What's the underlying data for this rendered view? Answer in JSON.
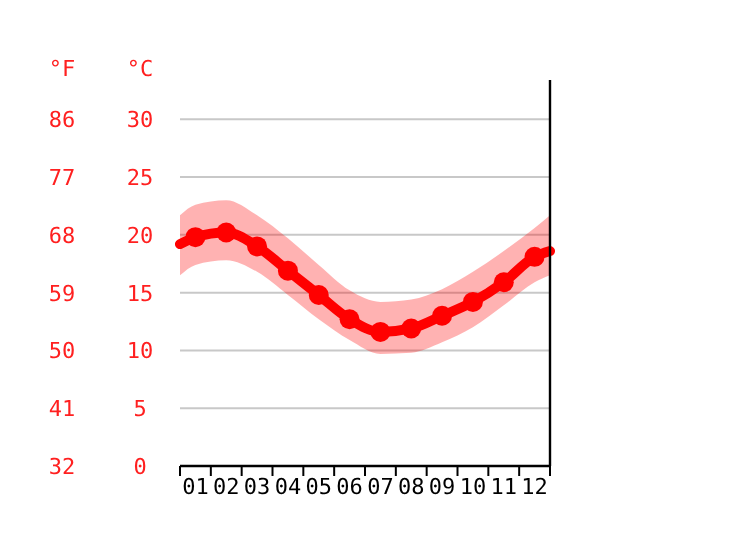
{
  "chart_data": {
    "type": "line",
    "ylabel": "°C",
    "y2label": "°F",
    "x": [
      0,
      0.5,
      1.5,
      2.5,
      3.5,
      4.5,
      5.5,
      6.5,
      7.5,
      8.5,
      9.5,
      10.5,
      11.5,
      12
    ],
    "xlim": [
      0,
      12
    ],
    "xticks": [
      {
        "value": 0,
        "label": null
      },
      {
        "value": 0.5,
        "label": "01"
      },
      {
        "value": 1,
        "label": null
      },
      {
        "value": 1.5,
        "label": "02"
      },
      {
        "value": 2,
        "label": null
      },
      {
        "value": 2.5,
        "label": "03"
      },
      {
        "value": 3,
        "label": null
      },
      {
        "value": 3.5,
        "label": "04"
      },
      {
        "value": 4,
        "label": null
      },
      {
        "value": 4.5,
        "label": "05"
      },
      {
        "value": 5,
        "label": null
      },
      {
        "value": 5.5,
        "label": "06"
      },
      {
        "value": 6,
        "label": null
      },
      {
        "value": 6.5,
        "label": "07"
      },
      {
        "value": 7,
        "label": null
      },
      {
        "value": 7.5,
        "label": "08"
      },
      {
        "value": 8,
        "label": null
      },
      {
        "value": 8.5,
        "label": "09"
      },
      {
        "value": 9,
        "label": null
      },
      {
        "value": 9.5,
        "label": "10"
      },
      {
        "value": 10,
        "label": null
      },
      {
        "value": 10.5,
        "label": "11"
      },
      {
        "value": 11,
        "label": null
      },
      {
        "value": 11.5,
        "label": "12"
      },
      {
        "value": 12,
        "label": null
      }
    ],
    "ylim": [
      0,
      33.4
    ],
    "yticks": [
      0,
      5,
      10,
      15,
      20,
      25,
      30
    ],
    "y2lim": [
      32,
      92.1
    ],
    "y2ticks": [
      32,
      41,
      50,
      59,
      68,
      77,
      86
    ],
    "grid": "y",
    "marker": "circle",
    "line_style": "solid",
    "series": [
      {
        "color": "#ff0000",
        "values": [
          19.2,
          19.8,
          20.2,
          19.0,
          16.9,
          14.8,
          12.7,
          11.6,
          11.9,
          13.0,
          14.2,
          15.9,
          18.1,
          18.6
        ],
        "upper": [
          21.7,
          22.6,
          23.0,
          21.7,
          19.7,
          17.4,
          15.2,
          14.2,
          14.4,
          15.3,
          16.8,
          18.6,
          20.6,
          21.7
        ],
        "lower": [
          16.5,
          17.4,
          17.8,
          16.8,
          14.8,
          12.7,
          10.9,
          9.7,
          9.8,
          10.7,
          12.0,
          13.9,
          15.9,
          16.5
        ]
      }
    ]
  }
}
